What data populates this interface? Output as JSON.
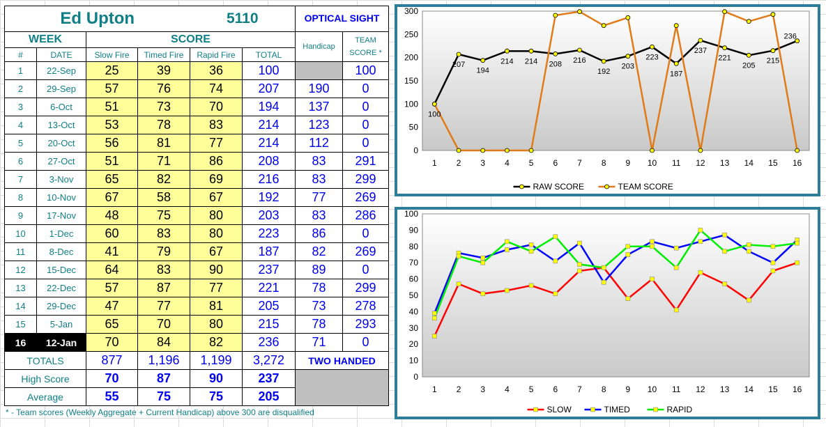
{
  "header": {
    "name": "Ed Upton",
    "id_number": "5110",
    "sight": "OPTICAL SIGHT"
  },
  "columns": {
    "week": "WEEK",
    "score": "SCORE",
    "num": "#",
    "date": "DATE",
    "slow": "Slow Fire",
    "timed": "Timed Fire",
    "rapid": "Rapid Fire",
    "total": "TOTAL",
    "handicap": "Handicap",
    "team_line1": "TEAM",
    "team_line2": "SCORE *"
  },
  "rows": [
    {
      "num": "1",
      "date": "22-Sep",
      "slow": "25",
      "timed": "39",
      "rapid": "36",
      "total": "100",
      "handicap": "",
      "team": "100"
    },
    {
      "num": "2",
      "date": "29-Sep",
      "slow": "57",
      "timed": "76",
      "rapid": "74",
      "total": "207",
      "handicap": "190",
      "team": "0"
    },
    {
      "num": "3",
      "date": "6-Oct",
      "slow": "51",
      "timed": "73",
      "rapid": "70",
      "total": "194",
      "handicap": "137",
      "team": "0"
    },
    {
      "num": "4",
      "date": "13-Oct",
      "slow": "53",
      "timed": "78",
      "rapid": "83",
      "total": "214",
      "handicap": "123",
      "team": "0"
    },
    {
      "num": "5",
      "date": "20-Oct",
      "slow": "56",
      "timed": "81",
      "rapid": "77",
      "total": "214",
      "handicap": "112",
      "team": "0"
    },
    {
      "num": "6",
      "date": "27-Oct",
      "slow": "51",
      "timed": "71",
      "rapid": "86",
      "total": "208",
      "handicap": "83",
      "team": "291"
    },
    {
      "num": "7",
      "date": "3-Nov",
      "slow": "65",
      "timed": "82",
      "rapid": "69",
      "total": "216",
      "handicap": "83",
      "team": "299"
    },
    {
      "num": "8",
      "date": "10-Nov",
      "slow": "67",
      "timed": "58",
      "rapid": "67",
      "total": "192",
      "handicap": "77",
      "team": "269"
    },
    {
      "num": "9",
      "date": "17-Nov",
      "slow": "48",
      "timed": "75",
      "rapid": "80",
      "total": "203",
      "handicap": "83",
      "team": "286"
    },
    {
      "num": "10",
      "date": "1-Dec",
      "slow": "60",
      "timed": "83",
      "rapid": "80",
      "total": "223",
      "handicap": "86",
      "team": "0"
    },
    {
      "num": "11",
      "date": "8-Dec",
      "slow": "41",
      "timed": "79",
      "rapid": "67",
      "total": "187",
      "handicap": "82",
      "team": "269"
    },
    {
      "num": "12",
      "date": "15-Dec",
      "slow": "64",
      "timed": "83",
      "rapid": "90",
      "total": "237",
      "handicap": "89",
      "team": "0"
    },
    {
      "num": "13",
      "date": "22-Dec",
      "slow": "57",
      "timed": "87",
      "rapid": "77",
      "total": "221",
      "handicap": "78",
      "team": "299"
    },
    {
      "num": "14",
      "date": "29-Dec",
      "slow": "47",
      "timed": "77",
      "rapid": "81",
      "total": "205",
      "handicap": "73",
      "team": "278"
    },
    {
      "num": "15",
      "date": "5-Jan",
      "slow": "65",
      "timed": "70",
      "rapid": "80",
      "total": "215",
      "handicap": "78",
      "team": "293"
    },
    {
      "num": "16",
      "date": "12-Jan",
      "slow": "70",
      "timed": "84",
      "rapid": "82",
      "total": "236",
      "handicap": "71",
      "team": "0"
    }
  ],
  "current_row_index": 15,
  "totals": {
    "label": "TOTALS",
    "slow": "877",
    "timed": "1,196",
    "rapid": "1,199",
    "total": "3,272",
    "note": "TWO HANDED"
  },
  "high": {
    "label": "High Score",
    "slow": "70",
    "timed": "87",
    "rapid": "90",
    "total": "237"
  },
  "average": {
    "label": "Average",
    "slow": "55",
    "timed": "75",
    "rapid": "75",
    "total": "205"
  },
  "footnote": "* - Team scores (Weekly Aggregate + Current Handicap) above 300 are disqualified",
  "colors": {
    "teal": "#0f7f86",
    "blue": "#0000ee",
    "yellow_fill": "#ffff99",
    "chart_frame": "#2e7d99",
    "raw": "#000000",
    "team": "#e07b1a",
    "slow": "#ff0000",
    "timed": "#0000ff",
    "rapid": "#00ee00",
    "marker": "#ffff00"
  },
  "chart_data": [
    {
      "type": "line",
      "x": [
        1,
        2,
        3,
        4,
        5,
        6,
        7,
        8,
        9,
        10,
        11,
        12,
        13,
        14,
        15,
        16
      ],
      "ylim": [
        0,
        300
      ],
      "yticks": [
        0,
        50,
        100,
        150,
        200,
        250,
        300
      ],
      "grid": false,
      "legend_position": "bottom",
      "series": [
        {
          "name": "RAW SCORE",
          "values": [
            100,
            207,
            194,
            214,
            214,
            208,
            216,
            192,
            203,
            223,
            187,
            237,
            221,
            205,
            215,
            236
          ],
          "labels": [
            "100",
            "207",
            "194",
            "214",
            "214",
            "208",
            "216",
            "192",
            "203",
            "223",
            "187",
            "237",
            "221",
            "205",
            "215",
            "236"
          ]
        },
        {
          "name": "TEAM SCORE",
          "values": [
            100,
            0,
            0,
            0,
            0,
            291,
            299,
            269,
            286,
            0,
            269,
            0,
            299,
            278,
            293,
            0
          ]
        }
      ]
    },
    {
      "type": "line",
      "x": [
        1,
        2,
        3,
        4,
        5,
        6,
        7,
        8,
        9,
        10,
        11,
        12,
        13,
        14,
        15,
        16
      ],
      "ylim": [
        0,
        100
      ],
      "yticks": [
        0,
        10,
        20,
        30,
        40,
        50,
        60,
        70,
        80,
        90,
        100
      ],
      "grid": false,
      "legend_position": "bottom",
      "series": [
        {
          "name": "SLOW",
          "values": [
            25,
            57,
            51,
            53,
            56,
            51,
            65,
            67,
            48,
            60,
            41,
            64,
            57,
            47,
            65,
            70
          ]
        },
        {
          "name": "TIMED",
          "values": [
            39,
            76,
            73,
            78,
            81,
            71,
            82,
            58,
            75,
            83,
            79,
            83,
            87,
            77,
            70,
            84
          ]
        },
        {
          "name": "RAPID",
          "values": [
            36,
            74,
            70,
            83,
            77,
            86,
            69,
            67,
            80,
            80,
            67,
            90,
            77,
            81,
            80,
            82
          ]
        }
      ]
    }
  ]
}
